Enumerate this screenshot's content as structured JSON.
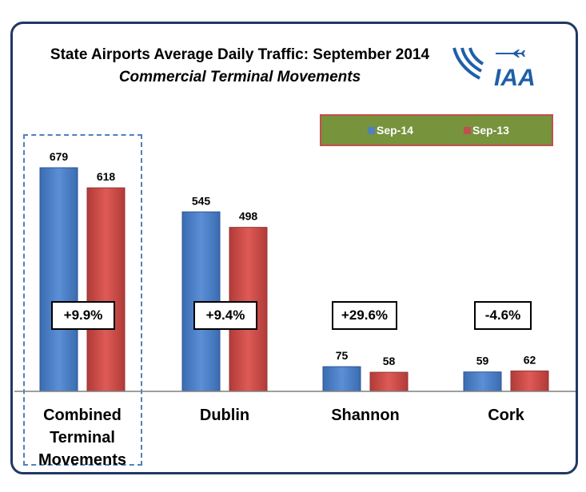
{
  "title": "State Airports Average Daily Traffic: September 2014",
  "subtitle": "Commercial Terminal Movements",
  "logo": {
    "text": "IAA",
    "icon": "airplane-icon"
  },
  "colors": {
    "sep14": "#4f81bd",
    "sep13": "#c0504d",
    "legend_bg": "#77933c",
    "frame": "#1f3864"
  },
  "chart_data": {
    "type": "bar",
    "categories": [
      "Combined Terminal Movements",
      "Dublin",
      "Shannon",
      "Cork"
    ],
    "series": [
      {
        "name": "Sep-14",
        "values": [
          679,
          545,
          75,
          59
        ]
      },
      {
        "name": "Sep-13",
        "values": [
          618,
          498,
          58,
          62
        ]
      }
    ],
    "changes": [
      "+9.9%",
      "+9.4%",
      "+29.6%",
      "-4.6%"
    ],
    "ylim": [
      0,
      700
    ],
    "legend_position": "top-right",
    "grid": false,
    "highlighted_category": "Combined Terminal Movements"
  }
}
